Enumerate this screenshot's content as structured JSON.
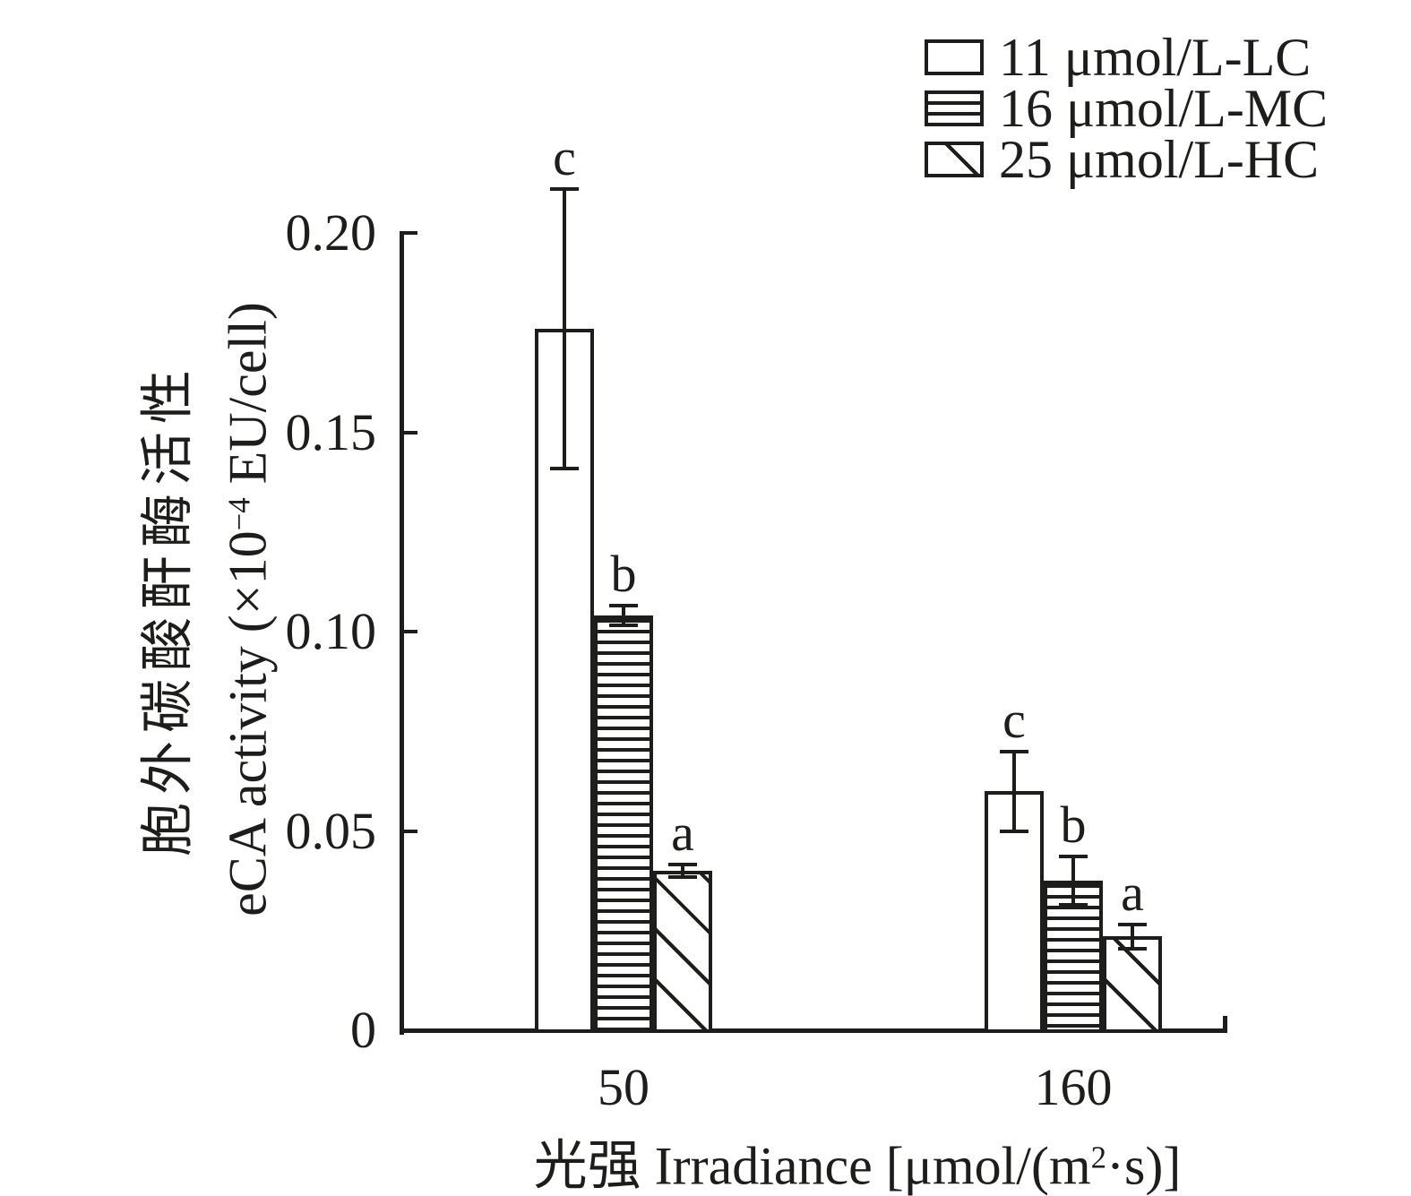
{
  "figure": {
    "background": "#ffffff",
    "ink_color": "#1d1d1b"
  },
  "legend": {
    "position": "top-right",
    "items": [
      {
        "label": "11 μmol/L-LC",
        "pattern": "plain"
      },
      {
        "label": "16 μmol/L-MC",
        "pattern": "horizontal-stripes"
      },
      {
        "label": "25 μmol/L-HC",
        "pattern": "diagonal-stripes"
      }
    ]
  },
  "axes": {
    "y_title_line1": "胞外碳酸酐酶活性",
    "y_title_line2_pre": "eCA activity (×10",
    "y_title_line2_sup": "−4",
    "y_title_line2_post": " EU/cell)",
    "x_title_pre": "光强 Irradiance [μmol/(m",
    "x_title_sup": "2",
    "x_title_post": "·s)]"
  },
  "chart_data": {
    "type": "bar",
    "title": "",
    "categories": [
      "50",
      "160"
    ],
    "series": [
      {
        "name": "11 μmol/L-LC",
        "code": "LC",
        "pattern": "plain",
        "values": [
          0.176,
          0.06
        ],
        "errors": [
          0.035,
          0.01
        ],
        "sig_letters": [
          "c",
          "c"
        ]
      },
      {
        "name": "16 μmol/L-MC",
        "code": "MC",
        "pattern": "horizontal-stripes",
        "values": [
          0.104,
          0.0375
        ],
        "errors": [
          0.0025,
          0.006
        ],
        "sig_letters": [
          "b",
          "b"
        ]
      },
      {
        "name": "25 μmol/L-HC",
        "code": "HC",
        "pattern": "diagonal-stripes",
        "values": [
          0.04,
          0.0235
        ],
        "errors": [
          0.0015,
          0.003
        ],
        "sig_letters": [
          "a",
          "a"
        ]
      }
    ],
    "xlabel": "光强 Irradiance [μmol/(m²·s)]",
    "ylabel": "胞外碳酸酐酶活性 eCA activity (×10⁻⁴ EU/cell)",
    "ylim": [
      0,
      0.2
    ],
    "yticks": [
      0,
      0.05,
      0.1,
      0.15,
      0.2
    ],
    "ytick_labels": [
      "0",
      "0.05",
      "0.10",
      "0.15",
      "0.20"
    ],
    "grid": false,
    "error_bars": true,
    "legend_position": "top-right"
  }
}
